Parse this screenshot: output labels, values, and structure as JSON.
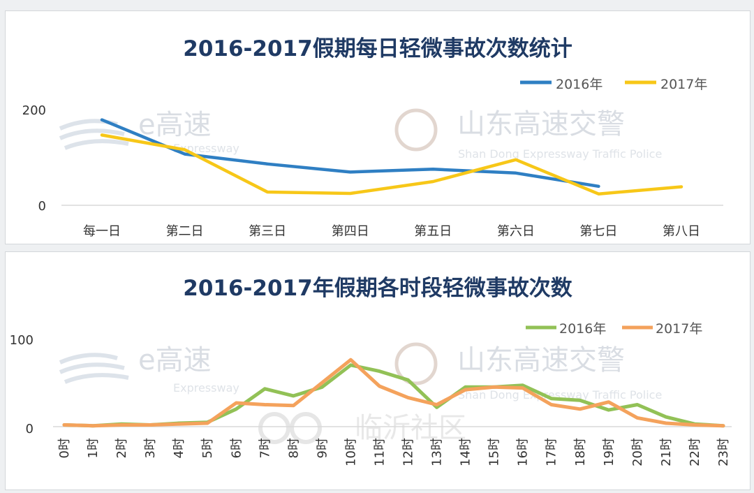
{
  "colors": {
    "series2016_top": "#2f7fc3",
    "series2017_top": "#f7c718",
    "series2016_bottom": "#92c156",
    "series2017_bottom": "#f4a25c"
  },
  "watermarks": {
    "left_main": "e高速",
    "left_sub": "Expressway",
    "right_main": "山东高速交警",
    "right_sub": "Shan Dong Expressway Traffic Police",
    "center_main": "临沂社区"
  },
  "chart_data": [
    {
      "type": "line",
      "title": "2016-2017假期每日轻微事故次数统计",
      "categories": [
        "每一日",
        "第二日",
        "第三日",
        "第四日",
        "第五日",
        "第六日",
        "第七日",
        "第八日"
      ],
      "yticks": [
        "200",
        "0"
      ],
      "ylim": [
        0,
        200
      ],
      "legend_position": "top-right",
      "grid": false,
      "series": [
        {
          "name": "2016年",
          "values": [
            180,
            108,
            87,
            70,
            76,
            68,
            40,
            null
          ]
        },
        {
          "name": "2017年",
          "values": [
            148,
            117,
            28,
            25,
            50,
            96,
            24,
            39
          ]
        }
      ]
    },
    {
      "type": "line",
      "title": "2016-2017年假期各时段轻微事故次数",
      "categories": [
        "0时",
        "1时",
        "2时",
        "3时",
        "4时",
        "5时",
        "6时",
        "7时",
        "8时",
        "9时",
        "10时",
        "11时",
        "12时",
        "13时",
        "14时",
        "15时",
        "16时",
        "17时",
        "18时",
        "19时",
        "20时",
        "21时",
        "22时",
        "23时"
      ],
      "yticks": [
        "100",
        "0"
      ],
      "ylim": [
        0,
        100
      ],
      "legend_position": "top-right",
      "grid": false,
      "series": [
        {
          "name": "2016年",
          "values": [
            2,
            1,
            3,
            2,
            4,
            5,
            20,
            43,
            35,
            45,
            70,
            63,
            53,
            22,
            45,
            45,
            47,
            32,
            30,
            19,
            25,
            11,
            3,
            1
          ]
        },
        {
          "name": "2017年",
          "values": [
            2,
            1,
            2,
            2,
            3,
            4,
            27,
            25,
            24,
            50,
            76,
            46,
            33,
            25,
            42,
            45,
            44,
            25,
            20,
            28,
            10,
            4,
            2,
            1
          ]
        }
      ]
    }
  ]
}
